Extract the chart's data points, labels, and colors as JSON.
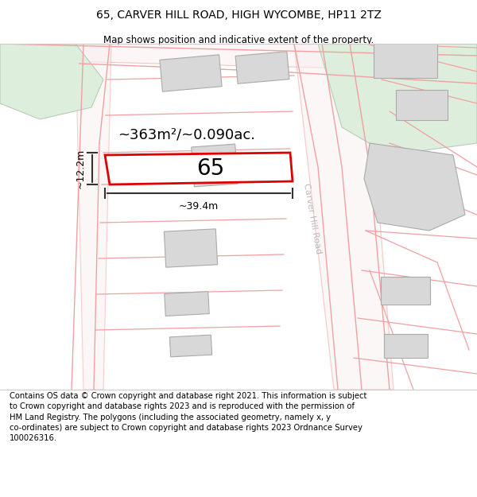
{
  "title": "65, CARVER HILL ROAD, HIGH WYCOMBE, HP11 2TZ",
  "subtitle": "Map shows position and indicative extent of the property.",
  "footer": "Contains OS data © Crown copyright and database right 2021. This information is subject\nto Crown copyright and database rights 2023 and is reproduced with the permission of\nHM Land Registry. The polygons (including the associated geometry, namely x, y\nco-ordinates) are subject to Crown copyright and database rights 2023 Ordnance Survey\n100026316.",
  "area_label": "~363m²/~0.090ac.",
  "width_label": "~39.4m",
  "height_label": "~12.2m",
  "number_label": "65",
  "map_bg": "#ffffff",
  "road_line_color": "#f0a0a0",
  "highlight_color": "#dd0000",
  "building_fill": "#d8d8d8",
  "building_stroke": "#aaaaaa",
  "green_fill": "#ddeedd",
  "green_stroke": "#c0d8c0",
  "title_fontsize": 10,
  "subtitle_fontsize": 8.5,
  "footer_fontsize": 7.2,
  "label_fontsize": 13,
  "number_fontsize": 20
}
